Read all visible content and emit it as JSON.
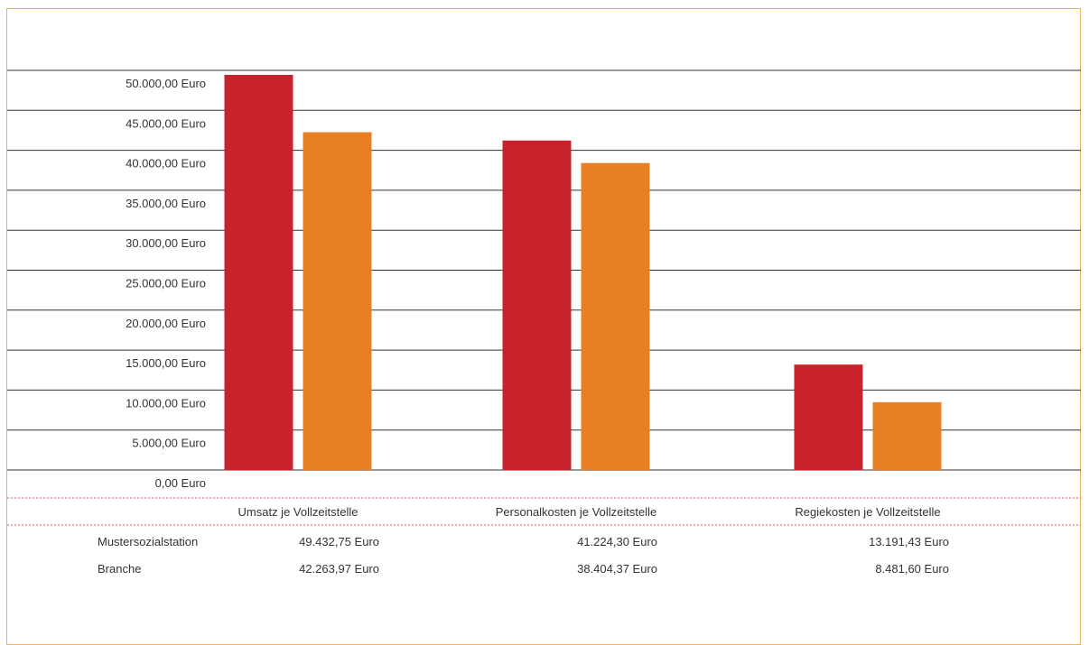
{
  "chart_data": {
    "type": "bar",
    "categories": [
      "Umsatz je Vollzeitstelle",
      "Personalkosten je Vollzeitstelle",
      "Regiekosten je Vollzeitstelle"
    ],
    "series": [
      {
        "name": "Mustersozialstation",
        "values": [
          49432.75,
          41224.3,
          13191.43
        ],
        "color": "#c8232c",
        "labels": [
          "49.432,75 Euro",
          "41.224,30 Euro",
          "13.191,43 Euro"
        ]
      },
      {
        "name": "Branche",
        "values": [
          42263.97,
          38404.37,
          8481.6
        ],
        "color": "#e88023",
        "labels": [
          "42.263,97 Euro",
          "38.404,37 Euro",
          "8.481,60 Euro"
        ]
      }
    ],
    "yticks": [
      0,
      5000,
      10000,
      15000,
      20000,
      25000,
      30000,
      35000,
      40000,
      45000,
      50000
    ],
    "ytick_labels": [
      "0,00 Euro",
      "5.000,00 Euro",
      "10.000,00 Euro",
      "15.000,00 Euro",
      "20.000,00 Euro",
      "25.000,00 Euro",
      "30.000,00 Euro",
      "35.000,00 Euro",
      "40.000,00 Euro",
      "45.000,00 Euro",
      "50.000,00 Euro"
    ],
    "ylim": [
      0,
      50000
    ],
    "grid": true,
    "frame_color": "#e8b15a",
    "separator_color": "#d9534f"
  }
}
